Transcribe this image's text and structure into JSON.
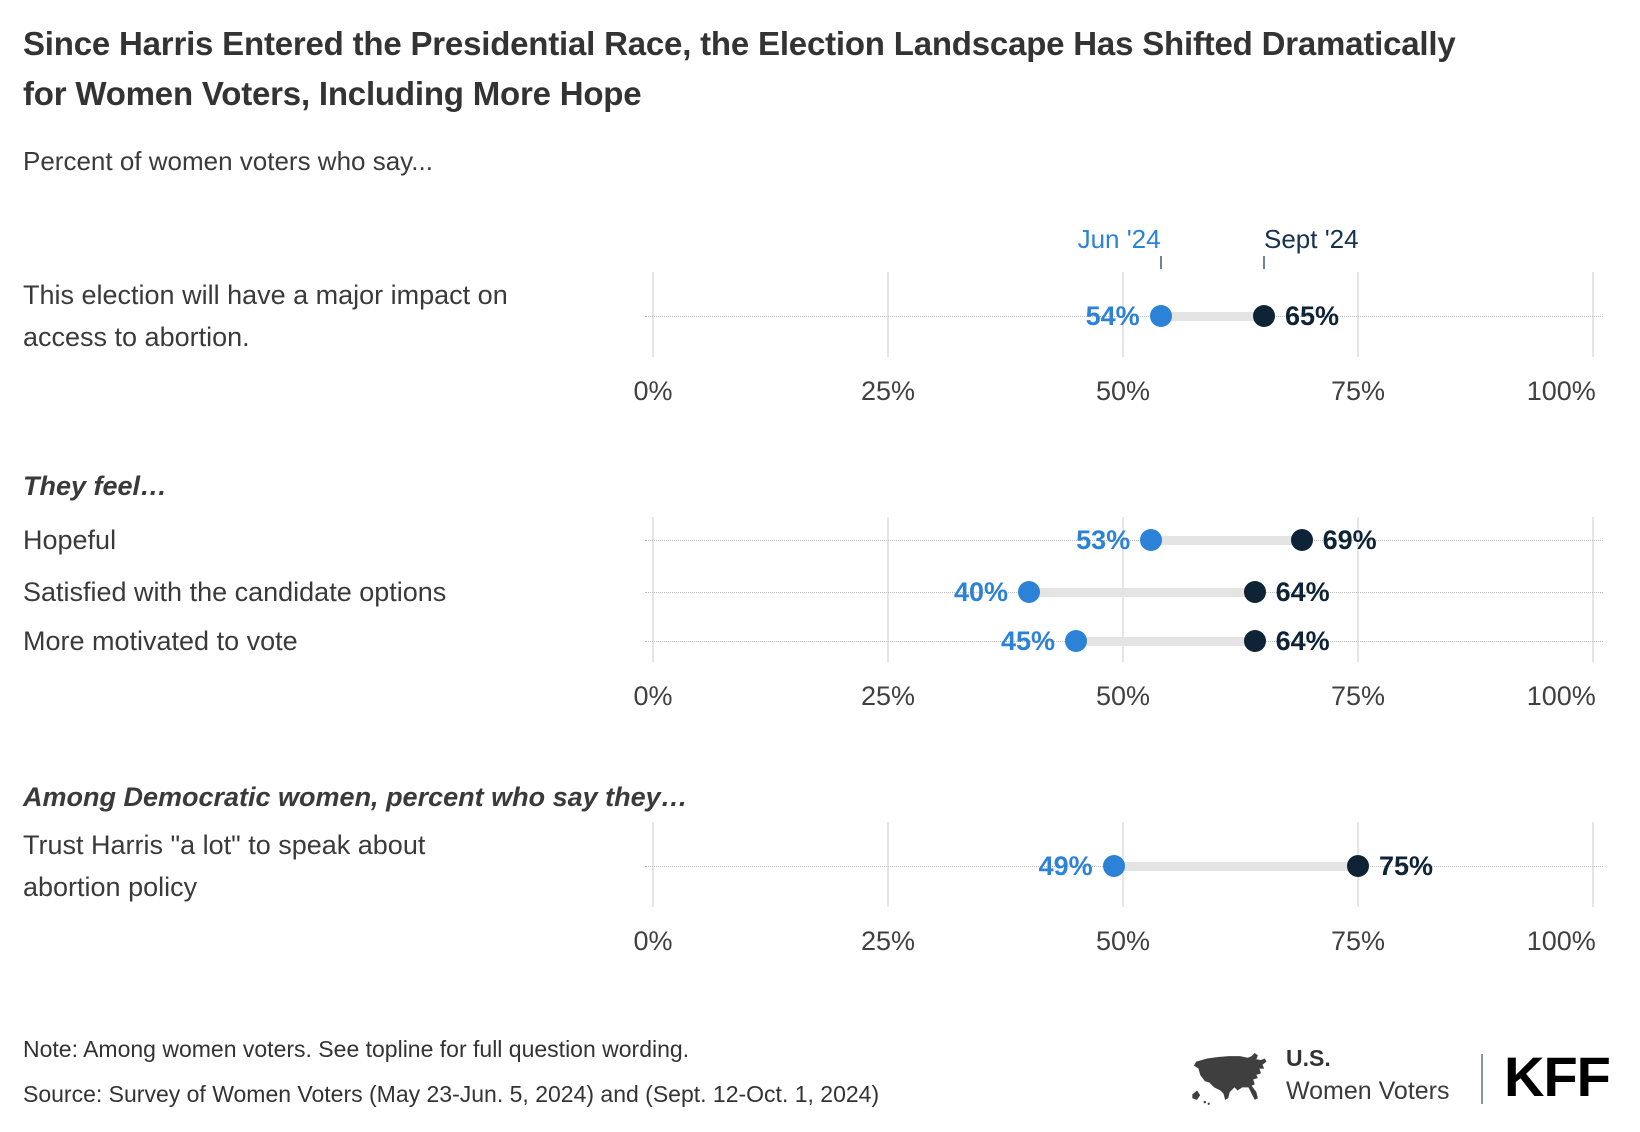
{
  "title": "Since Harris Entered the Presidential Race, the Election Landscape Has Shifted Dramatically for Women Voters, Including More Hope",
  "subtitle": "Percent of women voters who say...",
  "legend": {
    "jun": "Jun '24",
    "sept": "Sept '24"
  },
  "colors": {
    "jun": "#2b82d6",
    "sept": "#0e2336",
    "legend_sept": "#16324e",
    "connector": "#e4e4e4",
    "gridline": "#cbcbcb"
  },
  "chart_data": {
    "type": "dumbbell",
    "title": "Since Harris Entered the Presidential Race, the Election Landscape Has Shifted Dramatically for Women Voters, Including More Hope",
    "subtitle": "Percent of women voters who say...",
    "series": [
      {
        "name": "Jun '24",
        "color": "#2b82d6"
      },
      {
        "name": "Sept '24",
        "color": "#0e2336"
      }
    ],
    "x_axis": {
      "min": 0,
      "max": 100,
      "grid": true,
      "ticks": [
        {
          "value": 0,
          "label": "0%"
        },
        {
          "value": 25,
          "label": "25%"
        },
        {
          "value": 50,
          "label": "50%"
        },
        {
          "value": 75,
          "label": "75%"
        },
        {
          "value": 100,
          "label": "100%"
        }
      ]
    },
    "sections": [
      {
        "header": "",
        "rows": [
          {
            "label": "This election will have a major impact on access to abortion.",
            "jun": 54,
            "sept": 65,
            "jun_label": "54%",
            "sept_label": "65%"
          }
        ]
      },
      {
        "header": "They feel…",
        "rows": [
          {
            "label": "Hopeful",
            "jun": 53,
            "sept": 69,
            "jun_label": "53%",
            "sept_label": "69%"
          },
          {
            "label": "Satisfied with the candidate options",
            "jun": 40,
            "sept": 64,
            "jun_label": "40%",
            "sept_label": "64%"
          },
          {
            "label": "More motivated to vote",
            "jun": 45,
            "sept": 64,
            "jun_label": "45%",
            "sept_label": "64%"
          }
        ]
      },
      {
        "header": "Among Democratic women, percent who say they…",
        "rows": [
          {
            "label": "Trust Harris \"a lot\" to speak about abortion policy",
            "jun": 49,
            "sept": 75,
            "jun_label": "49%",
            "sept_label": "75%"
          }
        ]
      }
    ]
  },
  "footer": {
    "note": "Note: Among women voters. See topline for full question wording.",
    "source": "Source: Survey of Women Voters (May 23-Jun. 5, 2024) and (Sept. 12-Oct. 1, 2024)",
    "brand": {
      "us": "U.S.",
      "women_voters": "Women Voters",
      "kff": "KFF"
    }
  }
}
